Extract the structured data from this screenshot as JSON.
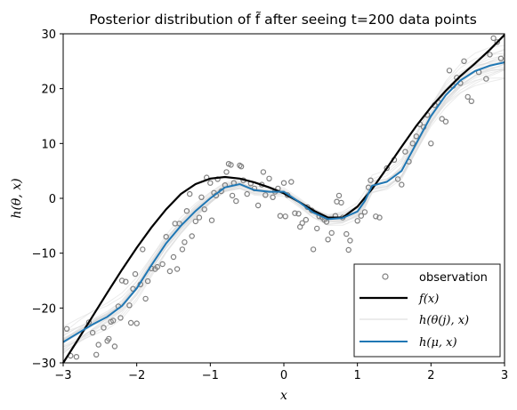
{
  "chart_data": {
    "type": "scatter",
    "title": "Posterior distribution of f̃ after seeing t=200 data points",
    "xlabel": "x",
    "ylabel": "h(θ, x)",
    "xlim": [
      -3,
      3
    ],
    "ylim": [
      -30,
      30
    ],
    "xticks": [
      "−3",
      "−2",
      "−1",
      "0",
      "1",
      "2",
      "3"
    ],
    "yticks": [
      "−30",
      "−20",
      "−10",
      "0",
      "10",
      "20",
      "30"
    ],
    "xtick_values": [
      -3,
      -2,
      -1,
      0,
      1,
      2,
      3
    ],
    "ytick_values": [
      -30,
      -20,
      -10,
      0,
      10,
      20,
      30
    ],
    "grid": false,
    "legend_position": "bottom-right",
    "legend": [
      {
        "label": "observation",
        "marker": "open-circle",
        "color": "#7f7f7f"
      },
      {
        "label": "f(x)",
        "line": "solid",
        "color": "#000000"
      },
      {
        "label": "h(θ(j), x)",
        "line": "solid",
        "color": "#e0e0e0"
      },
      {
        "label": "h(μ, x)",
        "line": "solid",
        "color": "#1f77b4"
      }
    ],
    "series": [
      {
        "name": "observation",
        "points": [
          [
            -2.95,
            -23.8
          ],
          [
            -2.9,
            -28.7
          ],
          [
            -2.82,
            -28.9
          ],
          [
            -2.65,
            -22.6
          ],
          [
            -2.6,
            -24.5
          ],
          [
            -2.55,
            -28.5
          ],
          [
            -2.52,
            -26.7
          ],
          [
            -2.45,
            -23.6
          ],
          [
            -2.4,
            -26.0
          ],
          [
            -2.38,
            -25.6
          ],
          [
            -2.35,
            -22.5
          ],
          [
            -2.32,
            -22.3
          ],
          [
            -2.3,
            -27.0
          ],
          [
            -2.25,
            -19.7
          ],
          [
            -2.22,
            -21.8
          ],
          [
            -2.2,
            -15.0
          ],
          [
            -2.15,
            -15.2
          ],
          [
            -2.1,
            -19.5
          ],
          [
            -2.08,
            -22.7
          ],
          [
            -2.05,
            -16.5
          ],
          [
            -2.02,
            -13.8
          ],
          [
            -2.0,
            -22.8
          ],
          [
            -1.95,
            -15.7
          ],
          [
            -1.92,
            -9.3
          ],
          [
            -1.88,
            -18.3
          ],
          [
            -1.85,
            -15.1
          ],
          [
            -1.8,
            -12.8
          ],
          [
            -1.75,
            -12.9
          ],
          [
            -1.72,
            -12.5
          ],
          [
            -1.65,
            -12.0
          ],
          [
            -1.6,
            -7.0
          ],
          [
            -1.55,
            -13.3
          ],
          [
            -1.5,
            -10.7
          ],
          [
            -1.48,
            -4.6
          ],
          [
            -1.45,
            -12.9
          ],
          [
            -1.42,
            -4.6
          ],
          [
            -1.38,
            -9.3
          ],
          [
            -1.35,
            -8.0
          ],
          [
            -1.32,
            -2.3
          ],
          [
            -1.28,
            0.8
          ],
          [
            -1.25,
            -6.9
          ],
          [
            -1.2,
            -4.2
          ],
          [
            -1.15,
            -3.5
          ],
          [
            -1.12,
            0.2
          ],
          [
            -1.08,
            -2.0
          ],
          [
            -1.05,
            3.8
          ],
          [
            -1.0,
            2.8
          ],
          [
            -0.98,
            -4.0
          ],
          [
            -0.95,
            1.0
          ],
          [
            -0.92,
            0.5
          ],
          [
            -0.9,
            3.5
          ],
          [
            -0.85,
            1.3
          ],
          [
            -0.8,
            2.4
          ],
          [
            -0.78,
            4.8
          ],
          [
            -0.75,
            6.3
          ],
          [
            -0.72,
            6.1
          ],
          [
            -0.7,
            0.5
          ],
          [
            -0.68,
            2.8
          ],
          [
            -0.65,
            -0.5
          ],
          [
            -0.6,
            6.0
          ],
          [
            -0.58,
            5.8
          ],
          [
            -0.55,
            3.3
          ],
          [
            -0.5,
            0.8
          ],
          [
            -0.45,
            2.7
          ],
          [
            -0.4,
            1.8
          ],
          [
            -0.35,
            -1.3
          ],
          [
            -0.3,
            2.5
          ],
          [
            -0.28,
            4.8
          ],
          [
            -0.25,
            0.6
          ],
          [
            -0.2,
            3.6
          ],
          [
            -0.15,
            0.2
          ],
          [
            -0.12,
            1.2
          ],
          [
            -0.08,
            1.8
          ],
          [
            -0.05,
            -3.2
          ],
          [
            0.0,
            2.8
          ],
          [
            0.02,
            -3.3
          ],
          [
            0.05,
            0.6
          ],
          [
            0.1,
            3.0
          ],
          [
            0.15,
            -2.7
          ],
          [
            0.2,
            -2.8
          ],
          [
            0.22,
            -5.2
          ],
          [
            0.25,
            -4.5
          ],
          [
            0.3,
            -3.9
          ],
          [
            0.32,
            -1.6
          ],
          [
            0.38,
            -2.2
          ],
          [
            0.4,
            -9.3
          ],
          [
            0.45,
            -5.5
          ],
          [
            0.48,
            -3.3
          ],
          [
            0.52,
            -3.5
          ],
          [
            0.55,
            -3.9
          ],
          [
            0.58,
            -4.3
          ],
          [
            0.6,
            -7.5
          ],
          [
            0.65,
            -6.3
          ],
          [
            0.7,
            -3.2
          ],
          [
            0.72,
            -0.6
          ],
          [
            0.75,
            0.5
          ],
          [
            0.78,
            -0.8
          ],
          [
            0.8,
            -3.5
          ],
          [
            0.85,
            -6.5
          ],
          [
            0.88,
            -9.4
          ],
          [
            0.9,
            -7.7
          ],
          [
            1.0,
            -4.1
          ],
          [
            1.05,
            -3.2
          ],
          [
            1.1,
            -2.5
          ],
          [
            1.15,
            2.0
          ],
          [
            1.18,
            3.3
          ],
          [
            1.25,
            -3.3
          ],
          [
            1.3,
            -3.5
          ],
          [
            1.4,
            5.5
          ],
          [
            1.5,
            7.0
          ],
          [
            1.55,
            3.5
          ],
          [
            1.6,
            2.5
          ],
          [
            1.65,
            8.5
          ],
          [
            1.7,
            6.7
          ],
          [
            1.75,
            10.0
          ],
          [
            1.8,
            11.3
          ],
          [
            1.85,
            13.5
          ],
          [
            1.9,
            13.0
          ],
          [
            1.95,
            15.2
          ],
          [
            2.0,
            10.0
          ],
          [
            2.05,
            17.0
          ],
          [
            2.1,
            17.5
          ],
          [
            2.15,
            14.5
          ],
          [
            2.2,
            14.0
          ],
          [
            2.25,
            23.3
          ],
          [
            2.3,
            20.5
          ],
          [
            2.35,
            22.0
          ],
          [
            2.4,
            21.0
          ],
          [
            2.45,
            25.0
          ],
          [
            2.5,
            18.5
          ],
          [
            2.55,
            17.7
          ],
          [
            2.65,
            23.0
          ],
          [
            2.75,
            21.8
          ],
          [
            2.8,
            26.2
          ],
          [
            2.85,
            29.2
          ],
          [
            2.9,
            28.5
          ],
          [
            2.95,
            25.5
          ]
        ]
      },
      {
        "name": "f(x)",
        "type": "line",
        "points": [
          [
            -3.0,
            -30.0
          ],
          [
            -2.8,
            -25.8
          ],
          [
            -2.6,
            -21.5
          ],
          [
            -2.4,
            -17.2
          ],
          [
            -2.2,
            -13.0
          ],
          [
            -2.0,
            -9.0
          ],
          [
            -1.8,
            -5.3
          ],
          [
            -1.6,
            -2.0
          ],
          [
            -1.4,
            0.8
          ],
          [
            -1.2,
            2.6
          ],
          [
            -1.0,
            3.6
          ],
          [
            -0.8,
            3.9
          ],
          [
            -0.6,
            3.6
          ],
          [
            -0.4,
            2.9
          ],
          [
            -0.2,
            2.0
          ],
          [
            0.0,
            0.9
          ],
          [
            0.2,
            -0.6
          ],
          [
            0.4,
            -2.2
          ],
          [
            0.6,
            -3.5
          ],
          [
            0.8,
            -3.5
          ],
          [
            1.0,
            -1.5
          ],
          [
            1.2,
            1.7
          ],
          [
            1.4,
            5.5
          ],
          [
            1.6,
            9.4
          ],
          [
            1.8,
            13.2
          ],
          [
            2.0,
            16.6
          ],
          [
            2.2,
            19.6
          ],
          [
            2.4,
            22.3
          ],
          [
            2.6,
            24.6
          ],
          [
            2.8,
            27.1
          ],
          [
            3.0,
            29.8
          ]
        ]
      },
      {
        "name": "h(μ, x)",
        "type": "line",
        "points": [
          [
            -3.0,
            -26.2
          ],
          [
            -2.8,
            -24.6
          ],
          [
            -2.6,
            -23.0
          ],
          [
            -2.4,
            -21.6
          ],
          [
            -2.2,
            -19.6
          ],
          [
            -2.0,
            -16.4
          ],
          [
            -1.8,
            -12.2
          ],
          [
            -1.6,
            -8.2
          ],
          [
            -1.4,
            -5.0
          ],
          [
            -1.2,
            -2.3
          ],
          [
            -1.0,
            0.0
          ],
          [
            -0.8,
            2.0
          ],
          [
            -0.6,
            2.6
          ],
          [
            -0.4,
            1.5
          ],
          [
            -0.2,
            1.2
          ],
          [
            0.0,
            1.2
          ],
          [
            0.2,
            -0.6
          ],
          [
            0.4,
            -2.6
          ],
          [
            0.6,
            -3.8
          ],
          [
            0.8,
            -3.6
          ],
          [
            1.0,
            -2.4
          ],
          [
            1.1,
            -0.5
          ],
          [
            1.2,
            2.3
          ],
          [
            1.4,
            3.0
          ],
          [
            1.6,
            5.0
          ],
          [
            1.8,
            10.0
          ],
          [
            2.0,
            15.0
          ],
          [
            2.2,
            18.8
          ],
          [
            2.4,
            21.5
          ],
          [
            2.6,
            23.2
          ],
          [
            2.8,
            24.2
          ],
          [
            3.0,
            24.8
          ]
        ]
      }
    ],
    "annotations": []
  }
}
